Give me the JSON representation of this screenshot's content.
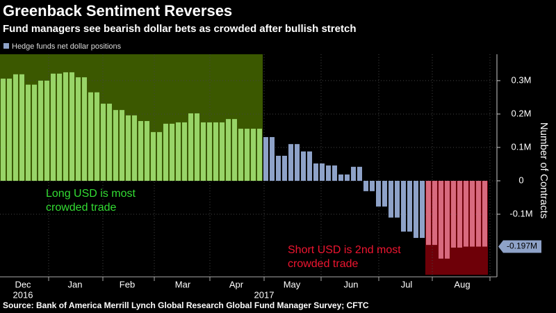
{
  "chart_data": {
    "type": "bar",
    "title": "Greenback Sentiment Reverses",
    "subtitle": "Fund managers see bearish dollar bets as crowded after bullish stretch",
    "source": "Source: Bank of America Merrill Lynch Global Research Global Fund Manager Survey; CFTC",
    "y_label": "Number of Contracts",
    "x_labels": [
      "Dec",
      "Jan",
      "Feb",
      "Mar",
      "Apr",
      "May",
      "Jun",
      "Jul",
      "Aug"
    ],
    "x_years": [
      "2016",
      "2017"
    ],
    "categories": [
      null,
      null,
      null,
      null,
      null,
      null,
      null,
      null,
      null,
      null,
      null,
      null,
      null,
      null,
      null,
      null,
      null,
      null,
      null,
      null,
      null,
      null,
      null,
      null,
      null,
      null,
      null,
      null,
      null,
      null,
      null,
      null,
      null,
      null,
      null,
      null,
      null,
      null,
      null
    ],
    "series": [
      {
        "name": "Hedge funds net dollar positions",
        "color": "#8ea2c8",
        "values": [
          306000,
          319000,
          288000,
          300000,
          321000,
          325000,
          310000,
          265000,
          231000,
          212000,
          196000,
          179000,
          146000,
          171000,
          175000,
          202000,
          175000,
          175000,
          185000,
          156000,
          156000,
          131000,
          75000,
          110000,
          88000,
          52000,
          46000,
          19000,
          42000,
          -31000,
          -77000,
          -110000,
          -152000,
          -171000,
          -192000,
          -233000,
          -200000,
          -197000,
          -197000
        ],
        "value_labels": [
          null,
          null,
          null,
          null,
          null,
          null,
          null,
          null,
          null,
          null,
          null,
          null,
          null,
          null,
          null,
          null,
          null,
          null,
          null,
          null,
          null,
          null,
          null,
          null,
          null,
          null,
          null,
          null,
          null,
          null,
          null,
          null,
          null,
          null,
          null,
          null,
          null,
          null,
          "-0.197M"
        ]
      }
    ],
    "highlights": [
      {
        "start": 0,
        "end": 20,
        "color": "#3b5800",
        "bar_color": "#98d468",
        "text_color": "#33dd33",
        "label": [
          "Long USD is most",
          "crowded trade"
        ]
      },
      {
        "start": 34,
        "end": 38,
        "color": "#6e0008",
        "bar_color": "#d86a7e",
        "text_color": "#ee1530",
        "label": [
          "Short USD is 2nd most",
          "crowded trade"
        ]
      }
    ],
    "ylim": [
      -287500,
      379000
    ],
    "yticks": [
      {
        "value": -100000,
        "label": "-0.1M"
      },
      0,
      {
        "value": 100000,
        "label": "0.1M"
      },
      {
        "value": 200000,
        "label": "0.2M"
      },
      {
        "value": 300000,
        "label": "0.3M"
      }
    ],
    "grid": true
  }
}
